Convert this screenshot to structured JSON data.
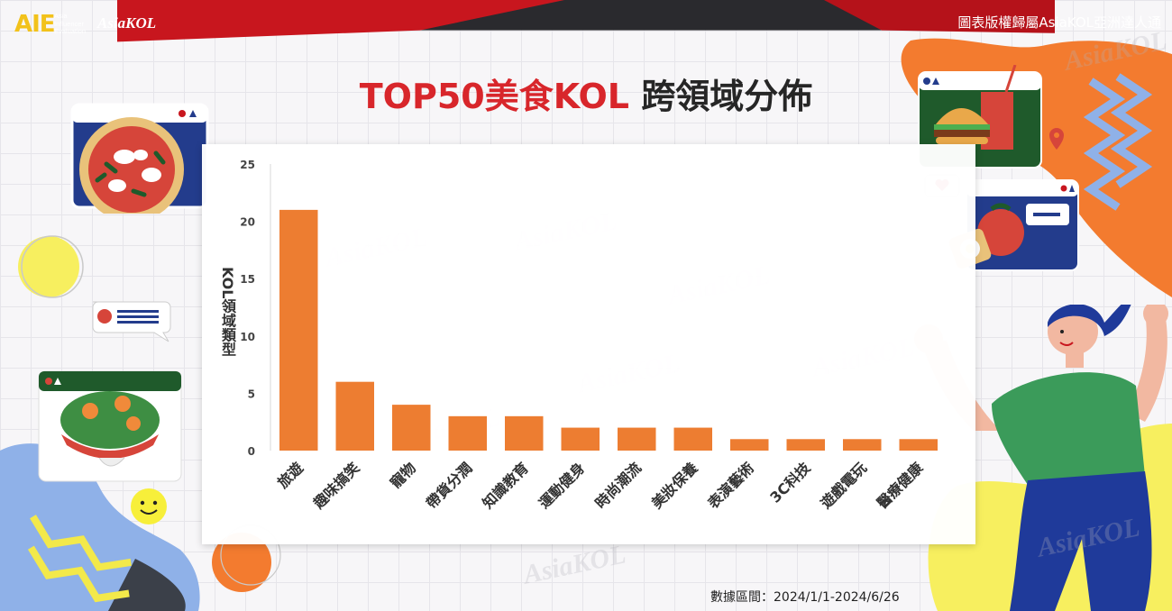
{
  "header": {
    "brand_aie": "AIE",
    "brand_aie_sub": [
      "Asia",
      "Influencer",
      "Evaluation"
    ],
    "brand_kol": "AsiaKOL",
    "copyright": "圖表版權歸屬AsiaKOL亞洲達人通"
  },
  "title": {
    "part1": "TOP50美食KOL",
    "part2": " 跨領域分佈"
  },
  "footnote": "數據區間：2024/1/1-2024/6/26",
  "watermark_text": "AsiaKOL",
  "colors": {
    "bar": "#ed7d31",
    "title_red": "#d8262b",
    "header_dark": "#222222",
    "header_red": "#c8161e"
  },
  "chart_data": {
    "type": "bar",
    "categories": [
      "旅遊",
      "趣味搞笑",
      "寵物",
      "帶貨分潤",
      "知識教育",
      "運動健身",
      "時尚潮流",
      "美妝保養",
      "表演藝術",
      "3C科技",
      "遊戲電玩",
      "醫療健康"
    ],
    "values": [
      21,
      6,
      4,
      3,
      3,
      2,
      2,
      2,
      1,
      1,
      1,
      1
    ],
    "title": "TOP50美食KOL 跨領域分佈",
    "xlabel": "",
    "ylabel": "KOL領域類型",
    "ylim": [
      0,
      25
    ],
    "yticks": [
      0,
      5,
      10,
      15,
      20,
      25
    ],
    "grid": false
  }
}
